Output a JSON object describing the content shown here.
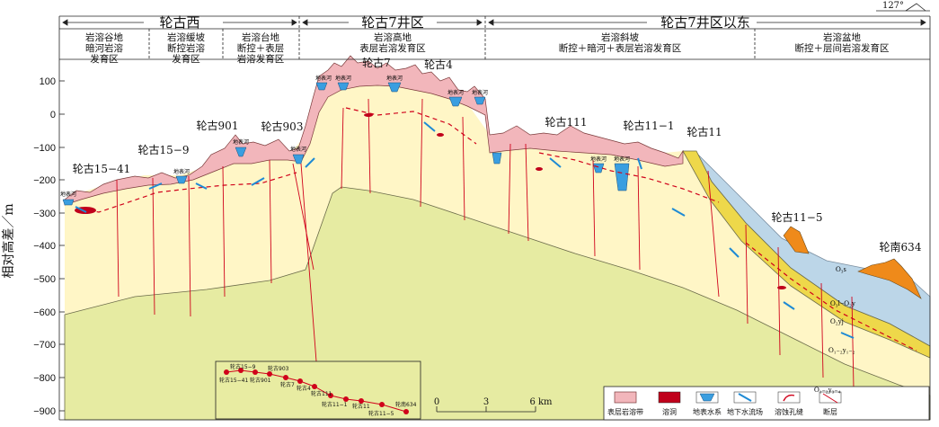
{
  "azimuth": "127°",
  "y_axis": {
    "label": "相对高差／m",
    "ticks": [
      "100",
      "0",
      "−100",
      "−200",
      "−300",
      "−400",
      "−500",
      "−600",
      "−700",
      "−800",
      "−900"
    ]
  },
  "regions": [
    {
      "name": "轮古西"
    },
    {
      "name": "轮古7井区"
    },
    {
      "name": "轮古7井区以东"
    }
  ],
  "zones": [
    {
      "line1": "岩溶谷地",
      "line2": "暗河岩溶",
      "line3": "发育区"
    },
    {
      "line1": "岩溶缓坡",
      "line2": "断控岩溶",
      "line3": "发育区"
    },
    {
      "line1": "岩溶台地",
      "line2": "断控＋表层",
      "line3": "岩溶发育区"
    },
    {
      "line1": "岩溶高地",
      "line2": "表层岩溶发育区",
      "line3": ""
    },
    {
      "line1": "岩溶斜坡",
      "line2": "断控＋暗河＋表层岩溶发育区",
      "line3": ""
    },
    {
      "line1": "岩溶盆地",
      "line2": "断控＋层间岩溶发育区",
      "line3": ""
    }
  ],
  "wells": [
    {
      "name": "轮古15−41"
    },
    {
      "name": "轮古15−9"
    },
    {
      "name": "轮古901"
    },
    {
      "name": "轮古903"
    },
    {
      "name": "轮古7"
    },
    {
      "name": "轮古4"
    },
    {
      "name": "轮古111"
    },
    {
      "name": "轮古11−1"
    },
    {
      "name": "轮古11"
    },
    {
      "name": "轮古11−5"
    },
    {
      "name": "轮南634"
    }
  ],
  "surface_water_label": "地表河",
  "strata": {
    "o3s": "O₃s",
    "o3l_o2y": "O₃l−O₂y",
    "o2yj": "O₂yj",
    "o12y": "O₁₋₂y₁₋₂",
    "o12y_lower": "O₁₋₂y₃₋₄"
  },
  "inset": {
    "wells": [
      "轮古15−9",
      "轮古903",
      "轮古15−41",
      "轮古901",
      "轮古7",
      "轮古4",
      "轮古111",
      "轮古11−1",
      "轮古11",
      "轮古11−5",
      "轮南634"
    ]
  },
  "scale_bar": {
    "ticks": [
      "0",
      "3",
      "6 km"
    ]
  },
  "legend": [
    {
      "label": "表层岩溶带"
    },
    {
      "label": "溶洞"
    },
    {
      "label": "地表水系"
    },
    {
      "label": "地下水流场"
    },
    {
      "label": "溶蚀孔缝"
    },
    {
      "label": "断层"
    }
  ],
  "colors": {
    "epikarst": "#f2b6bb",
    "cave": "#d0021b",
    "water": "#3a9ee0",
    "host_rock": "#fff6c6",
    "deep_rock": "#e9eda0",
    "basement": "#e2e8a8",
    "o3l_layer": "#bcd6e8",
    "o2yj_layer": "#eed84a",
    "o3s_layer": "#ef8a1a"
  }
}
